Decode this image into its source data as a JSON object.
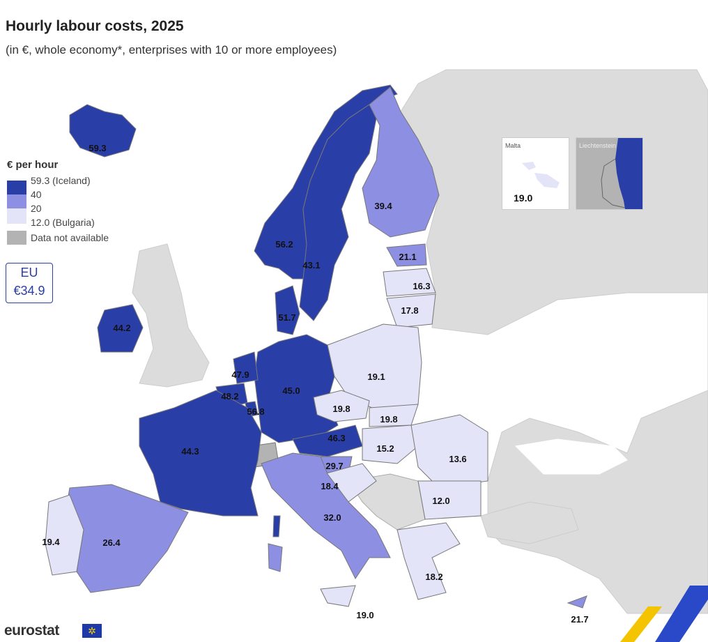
{
  "title": "Hourly labour costs, 2025",
  "subtitle": "(in €, whole economy*, enterprises with 10 or more employees)",
  "legend": {
    "title": "€ per hour",
    "items": [
      {
        "label": "59.3 (Iceland)",
        "color": "#2a3ea8"
      },
      {
        "label": "40",
        "color": "#8c8fe2"
      },
      {
        "label": "20",
        "color": "#e3e4f8"
      },
      {
        "label": "12.0 (Bulgaria)",
        "color": "#e3e4f8"
      },
      {
        "label": "Data not available",
        "color": "#b3b3b3"
      }
    ]
  },
  "eu_box": {
    "line1": "EU",
    "line2": "€34.9"
  },
  "insets": {
    "malta": {
      "name": "Malta",
      "value": "19.0"
    },
    "liechtenstein": {
      "name": "Liechtenstein"
    }
  },
  "colors": {
    "high": "#2a3ea8",
    "mid": "#8c8fe2",
    "low": "#e3e4f8",
    "na": "#b3b3b3",
    "nonEU": "#dcdcdc",
    "border": "#777777"
  },
  "values": {
    "iceland": "59.3",
    "norway": "56.2",
    "sweden": "43.1",
    "finland": "39.4",
    "estonia": "21.1",
    "latvia": "16.3",
    "lithuania": "17.8",
    "denmark": "51.7",
    "ireland": "44.2",
    "netherlands": "47.9",
    "belgium": "48.2",
    "luxembourg": "56.8",
    "germany": "45.0",
    "france": "44.3",
    "spain": "26.4",
    "portugal": "19.4",
    "italy": "32.0",
    "sicily": "19.0",
    "austria": "46.3",
    "czechia": "19.8",
    "poland": "19.1",
    "slovakia": "19.8",
    "hungary": "15.2",
    "slovenia": "29.7",
    "croatia": "18.4",
    "romania": "13.6",
    "bulgaria": "12.0",
    "greece": "18.2",
    "cyprus": "21.7"
  },
  "logo": "eurostat"
}
